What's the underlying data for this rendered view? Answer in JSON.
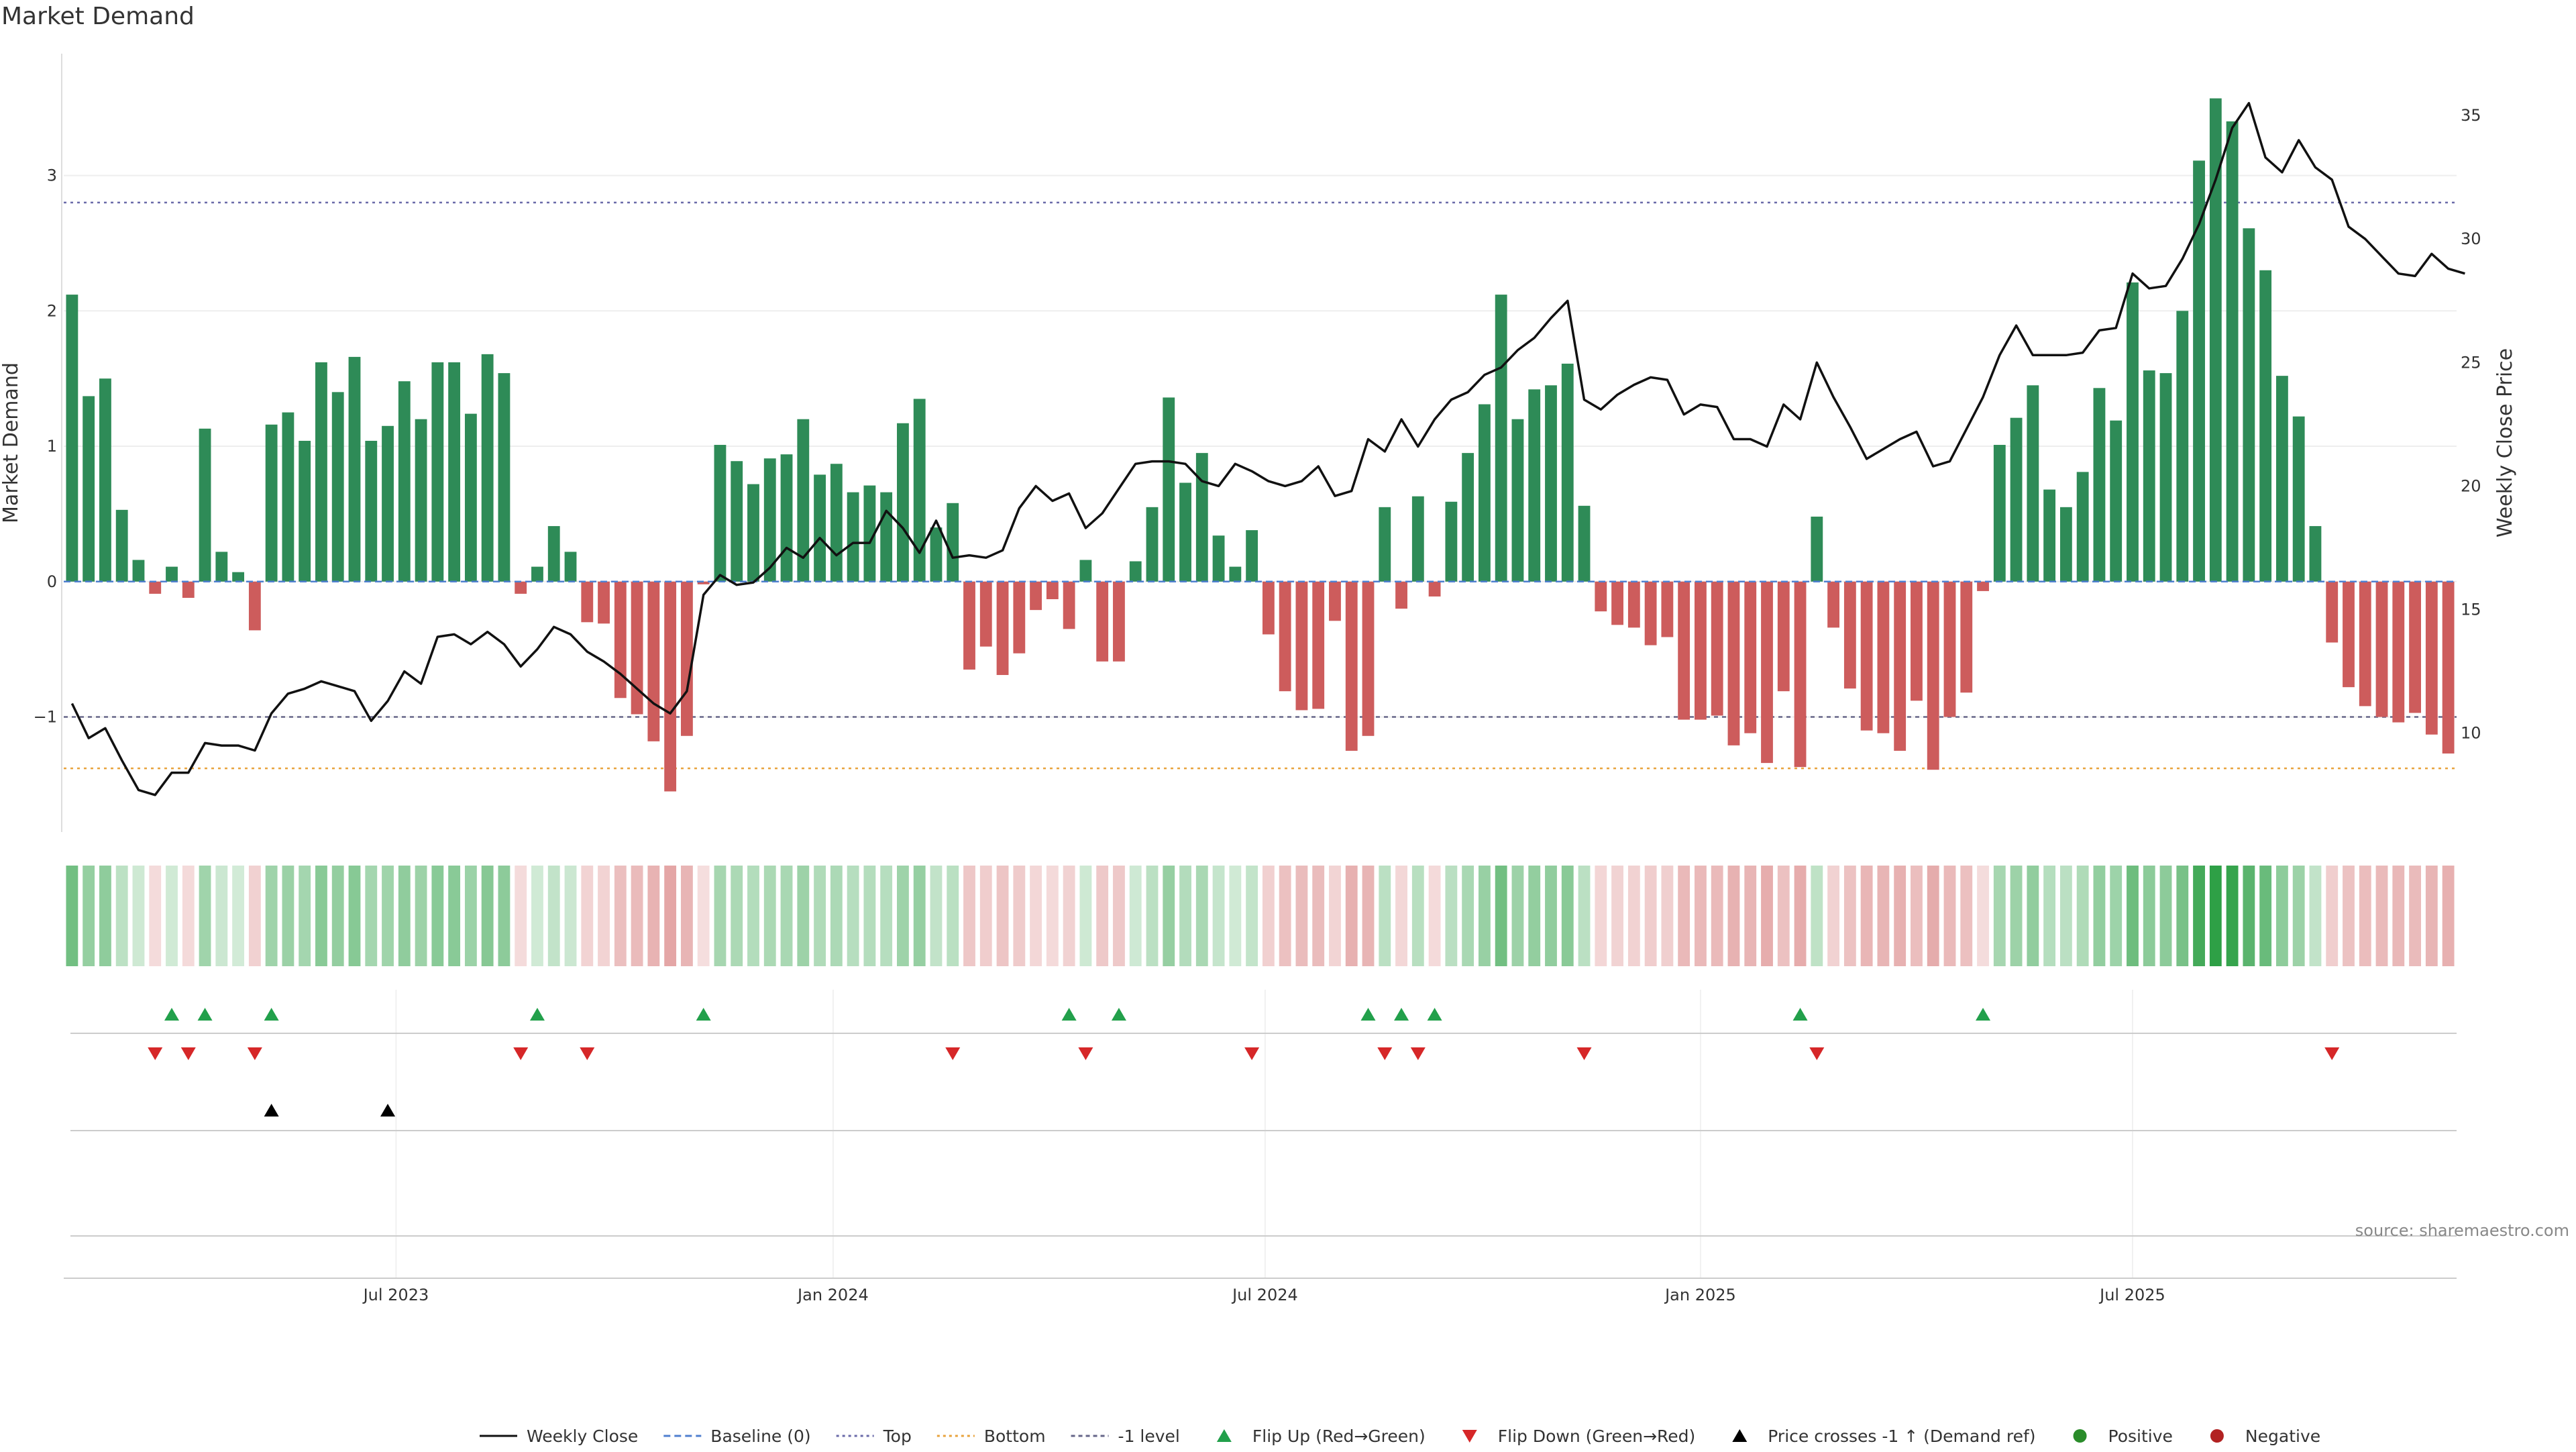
{
  "title": "Market Demand",
  "source": "source: sharemaestro.com",
  "colors": {
    "positive": "#2e8b57",
    "negative": "#cd5c5c",
    "price_line": "#111111",
    "top_line": "#6a6aa8",
    "bottom_line": "#e8a33d",
    "minus1_line": "#666688",
    "flip_up": "#22a04b",
    "flip_down": "#d62728",
    "cross": "#000000",
    "legend_positive": "#2a8c2a",
    "legend_negative": "#b22222",
    "baseline": "#4f7fcf"
  },
  "chart_data": {
    "type": "bar",
    "title": "Market Demand",
    "ylabel": "Market Demand",
    "y2label": "Weekly Close Price",
    "ylim": [
      -1.85,
      3.9
    ],
    "y2lim": [
      6.0,
      37.5
    ],
    "yticks": [
      {
        "v": 3,
        "label": "3"
      },
      {
        "v": 2,
        "label": "2"
      },
      {
        "v": 1,
        "label": "1"
      },
      {
        "v": 0,
        "label": "0"
      },
      {
        "v": -1,
        "label": "−1"
      }
    ],
    "y2ticks": [
      {
        "v": 35,
        "label": "35"
      },
      {
        "v": 30,
        "label": "30"
      },
      {
        "v": 25,
        "label": "25"
      },
      {
        "v": 20,
        "label": "20"
      },
      {
        "v": 15,
        "label": "15"
      },
      {
        "v": 10,
        "label": "10"
      }
    ],
    "xticks": [
      {
        "i": 20,
        "label": "Jul 2023"
      },
      {
        "i": 46.3,
        "label": "Jan 2024"
      },
      {
        "i": 72.3,
        "label": "Jul 2024"
      },
      {
        "i": 98.5,
        "label": "Jan 2025"
      },
      {
        "i": 124.5,
        "label": "Jul 2025"
      }
    ],
    "top_level": 2.8,
    "bottom_level": -1.38,
    "minus1_level": -1,
    "series": [
      {
        "name": "Market Demand",
        "values": [
          2.12,
          1.37,
          1.5,
          0.53,
          0.16,
          -0.09,
          0.11,
          -0.12,
          1.13,
          0.22,
          0.07,
          -0.36,
          1.16,
          1.25,
          1.04,
          1.62,
          1.4,
          1.66,
          1.04,
          1.15,
          1.48,
          1.2,
          1.62,
          1.62,
          1.24,
          1.68,
          1.54,
          -0.09,
          0.11,
          0.41,
          0.22,
          -0.3,
          -0.31,
          -0.86,
          -0.98,
          -1.18,
          -1.55,
          -1.14,
          -0.02,
          1.01,
          0.89,
          0.72,
          0.91,
          0.94,
          1.2,
          0.79,
          0.87,
          0.66,
          0.71,
          0.66,
          1.17,
          1.35,
          0.4,
          0.58,
          -0.65,
          -0.48,
          -0.69,
          -0.53,
          -0.21,
          -0.13,
          -0.35,
          0.16,
          -0.59,
          -0.59,
          0.15,
          0.55,
          1.36,
          0.73,
          0.95,
          0.34,
          0.11,
          0.38,
          -0.39,
          -0.81,
          -0.95,
          -0.94,
          -0.29,
          -1.25,
          -1.14,
          0.55,
          -0.2,
          0.63,
          -0.11,
          0.59,
          0.95,
          1.31,
          2.12,
          1.2,
          1.42,
          1.45,
          1.61,
          0.56,
          -0.22,
          -0.32,
          -0.34,
          -0.47,
          -0.41,
          -1.02,
          -1.02,
          -0.99,
          -1.21,
          -1.12,
          -1.34,
          -0.81,
          -1.37,
          0.48,
          -0.34,
          -0.79,
          -1.1,
          -1.12,
          -1.25,
          -0.88,
          -1.39,
          -1.0,
          -0.82,
          -0.07,
          1.01,
          1.21,
          1.45,
          0.68,
          0.55,
          0.81,
          1.43,
          1.19,
          2.21,
          1.56,
          1.54,
          2.0,
          3.11,
          3.57,
          3.4,
          2.61,
          2.3,
          1.52,
          1.22,
          0.41,
          -0.45,
          -0.78,
          -0.92,
          -1.0,
          -1.04,
          -0.97,
          -1.13,
          -1.27
        ]
      },
      {
        "name": "Weekly Close",
        "values": [
          11.2,
          9.8,
          10.2,
          8.9,
          7.7,
          7.5,
          8.4,
          8.4,
          9.6,
          9.5,
          9.5,
          9.3,
          10.8,
          11.6,
          11.8,
          12.1,
          11.9,
          11.7,
          10.5,
          11.3,
          12.5,
          12.0,
          13.9,
          14.0,
          13.6,
          14.1,
          13.6,
          12.7,
          13.4,
          14.3,
          14.0,
          13.3,
          12.9,
          12.4,
          11.8,
          11.2,
          10.8,
          11.7,
          15.6,
          16.4,
          16.0,
          16.1,
          16.7,
          17.5,
          17.1,
          17.9,
          17.2,
          17.7,
          17.7,
          19.0,
          18.3,
          17.3,
          18.6,
          17.1,
          17.2,
          17.1,
          17.4,
          19.1,
          20.0,
          19.4,
          19.7,
          18.3,
          18.9,
          19.9,
          20.9,
          21.0,
          21.0,
          20.9,
          20.2,
          20.0,
          20.9,
          20.6,
          20.2,
          20.0,
          20.2,
          20.8,
          19.6,
          19.8,
          21.9,
          21.4,
          22.7,
          21.6,
          22.7,
          23.5,
          23.8,
          24.5,
          24.8,
          25.5,
          26.0,
          26.8,
          27.5,
          23.5,
          23.1,
          23.7,
          24.1,
          24.4,
          24.3,
          22.9,
          23.3,
          23.2,
          21.9,
          21.9,
          21.6,
          23.3,
          22.7,
          25.0,
          23.6,
          22.4,
          21.1,
          21.5,
          21.9,
          22.2,
          20.8,
          21.0,
          22.3,
          23.6,
          25.3,
          26.5,
          25.3,
          25.3,
          25.3,
          25.4,
          26.3,
          26.4,
          28.6,
          28.0,
          28.1,
          29.2,
          30.6,
          32.4,
          34.5,
          35.5,
          33.3,
          32.7,
          34.0,
          32.9,
          32.4,
          30.5,
          30.0,
          29.3,
          28.6,
          28.5,
          29.4,
          28.8,
          28.6
        ]
      }
    ],
    "flip_up": [
      6,
      8,
      12,
      28,
      38,
      60,
      63,
      78,
      80,
      82,
      104,
      115
    ],
    "flip_down": [
      5,
      7,
      11,
      27,
      31,
      53,
      61,
      71,
      79,
      81,
      91,
      105,
      136
    ],
    "price_cross": [
      12,
      19
    ]
  },
  "legend": [
    {
      "key": "line",
      "label": "Weekly Close"
    },
    {
      "key": "dash",
      "label": "Baseline (0)"
    },
    {
      "key": "dot-purple",
      "label": "Top"
    },
    {
      "key": "dot-orange",
      "label": "Bottom"
    },
    {
      "key": "dot-gray",
      "label": "-1 level"
    },
    {
      "key": "tri-up",
      "label": "Flip Up (Red→Green)"
    },
    {
      "key": "tri-down",
      "label": "Flip Down (Green→Red)"
    },
    {
      "key": "tri-black",
      "label": "Price crosses -1 ↑ (Demand ref)"
    },
    {
      "key": "dot-green",
      "label": "Positive"
    },
    {
      "key": "dot-red",
      "label": "Negative"
    }
  ]
}
